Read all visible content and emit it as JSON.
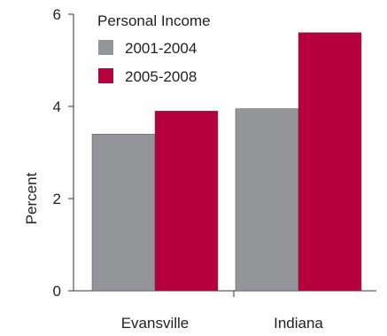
{
  "chart_data": {
    "type": "bar",
    "title": "",
    "xlabel": "",
    "ylabel": "Percent",
    "ylim": [
      0,
      6
    ],
    "yticks": [
      "0",
      "2",
      "4",
      "6"
    ],
    "grid": false,
    "legend_placement": "top-left",
    "legend_title": "Personal Income",
    "categories": [
      "Evansville",
      "Indiana"
    ],
    "series": [
      {
        "name": "2001-2004",
        "color": "#939598",
        "values": [
          3.4,
          3.95
        ]
      },
      {
        "name": "2005-2008",
        "color": "#b5003d",
        "values": [
          3.9,
          5.6
        ]
      }
    ]
  }
}
